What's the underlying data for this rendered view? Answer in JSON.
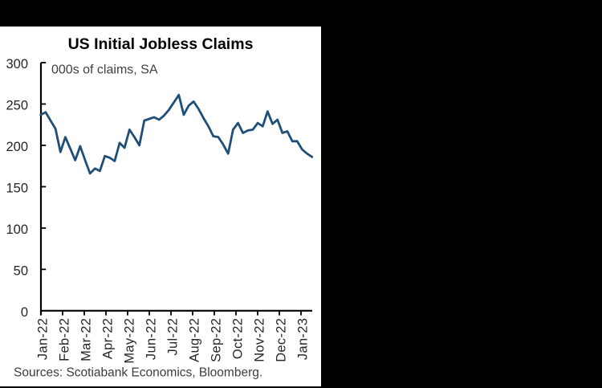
{
  "window": {
    "background_color": "#000000",
    "panel_background_color": "#ffffff"
  },
  "chart_data": {
    "type": "line",
    "title": "US Initial Jobless Claims",
    "subtitle": "000s of claims, SA",
    "source_note": "Sources: Scotiabank Economics, Bloomberg.",
    "frequency": "weekly",
    "x_tick_labels": [
      "Jan-22",
      "Feb-22",
      "Mar-22",
      "Apr-22",
      "May-22",
      "Jun-22",
      "Jul-22",
      "Aug-22",
      "Sep-22",
      "Oct-22",
      "Nov-22",
      "Dec-22",
      "Jan-23"
    ],
    "y_ticks": [
      0,
      50,
      100,
      150,
      200,
      250,
      300
    ],
    "ylim": [
      0,
      300
    ],
    "grid": false,
    "legend_position": "none",
    "line_color": "#1F4E79",
    "axis_color": "#000000",
    "series": [
      {
        "name": "US initial jobless claims (000s of claims, SA)",
        "values": [
          237,
          240,
          230,
          220,
          192,
          210,
          196,
          182,
          199,
          182,
          166,
          172,
          169,
          187,
          185,
          181,
          203,
          197,
          219,
          210,
          200,
          230,
          232,
          234,
          231,
          236,
          243,
          252,
          261,
          237,
          248,
          253,
          244,
          233,
          223,
          211,
          210,
          201,
          190,
          219,
          227,
          215,
          218,
          219,
          227,
          223,
          241,
          226,
          231,
          215,
          217,
          205,
          205,
          195,
          190,
          186
        ]
      }
    ]
  }
}
